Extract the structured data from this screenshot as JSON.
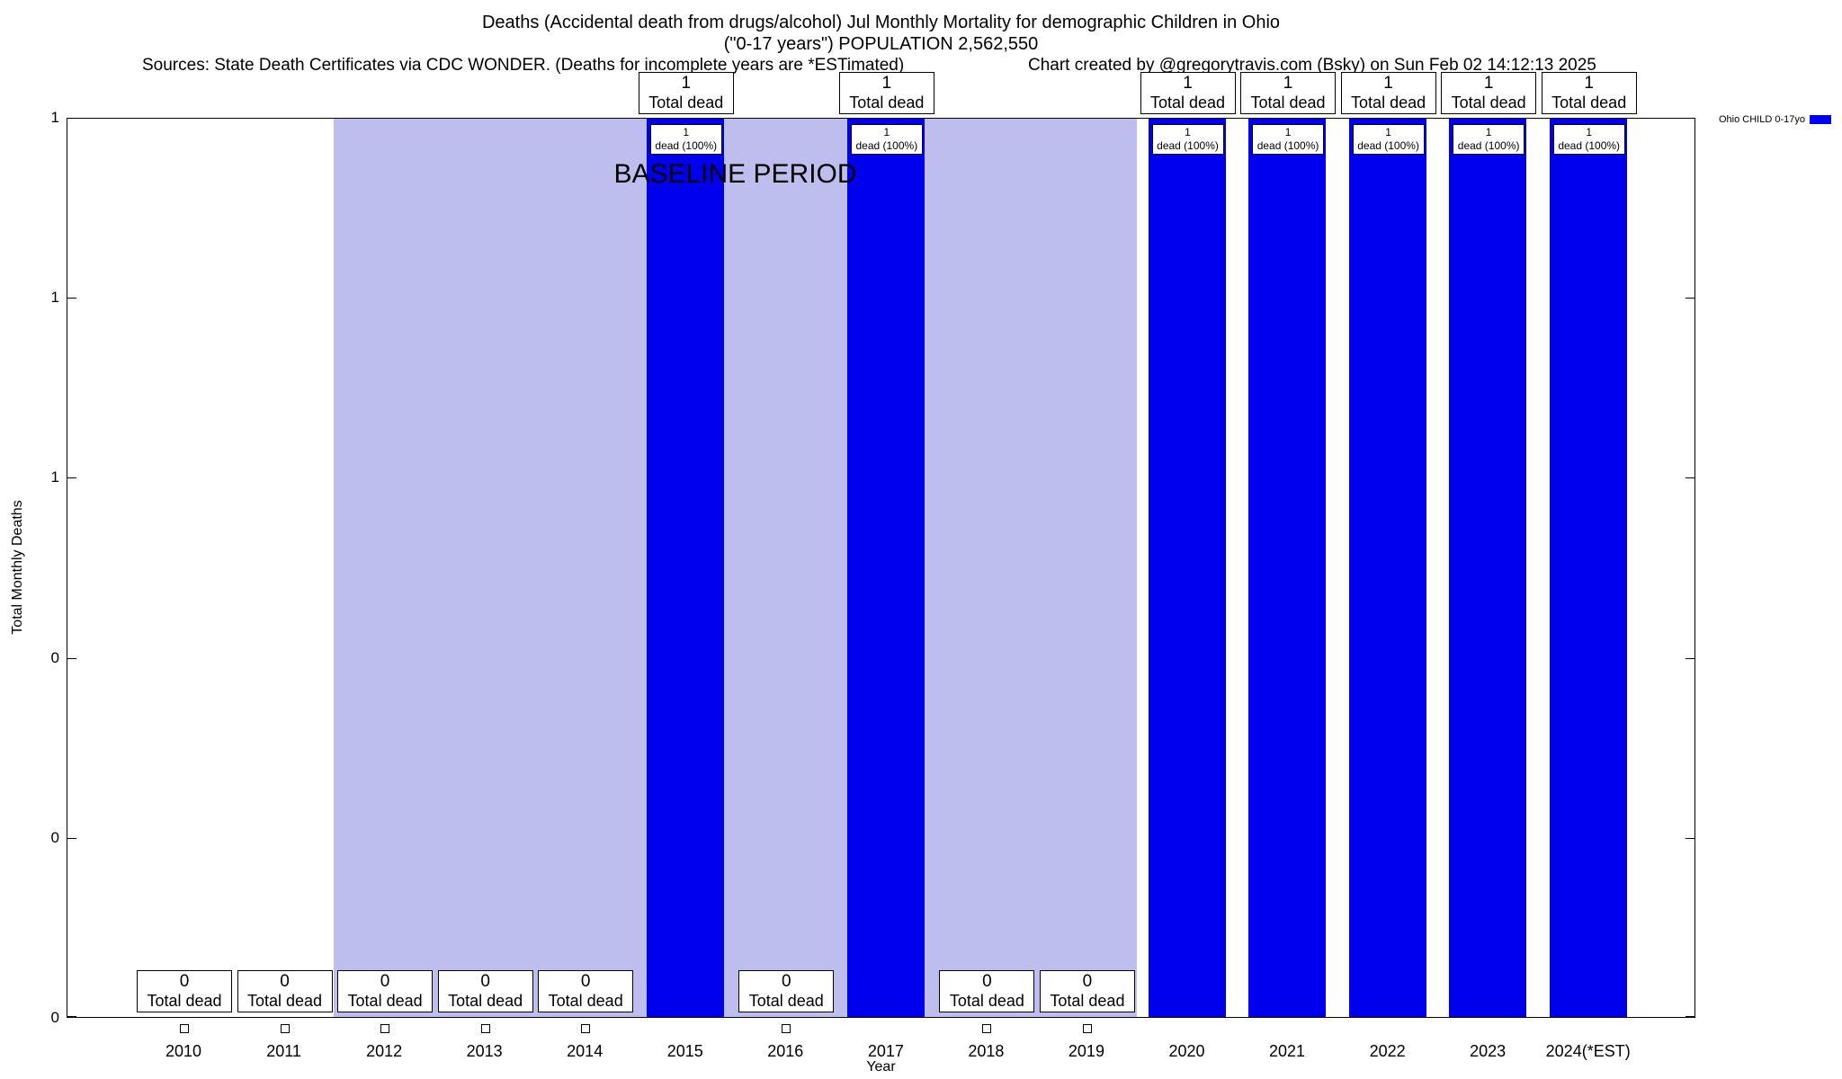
{
  "header": {
    "title_line1": "Deaths (Accidental death from drugs/alcohol) Jul Monthly Mortality for demographic Children in Ohio",
    "title_line2": "(\"0-17 years\") POPULATION 2,562,550",
    "sources": "Sources: State Death Certificates via CDC WONDER. (Deaths for incomplete years are *ESTimated)",
    "credit": "Chart created by @gregorytravis.com (Bsky) on Sun Feb 02 14:12:13 2025"
  },
  "chart_data": {
    "type": "bar",
    "title": "Deaths (Accidental death from drugs/alcohol) Jul Monthly Mortality for demographic Children in Ohio",
    "subtitle": "(\"0-17 years\") POPULATION 2,562,550",
    "xlabel": "Year",
    "ylabel": "Total Monthly Deaths",
    "ylim": [
      0,
      1
    ],
    "grid": false,
    "categories": [
      "2010",
      "2011",
      "2012",
      "2013",
      "2014",
      "2015",
      "2016",
      "2017",
      "2018",
      "2019",
      "2020",
      "2021",
      "2022",
      "2023",
      "2024(*EST)"
    ],
    "series": [
      {
        "name": "Ohio CHILD 0-17yo",
        "color": "#0000ee",
        "values": [
          0,
          0,
          0,
          0,
          0,
          1,
          0,
          1,
          0,
          0,
          1,
          1,
          1,
          1,
          1
        ]
      }
    ],
    "yticks": [
      {
        "value": 1,
        "label": "1"
      },
      {
        "value": 0.8,
        "label": "1"
      },
      {
        "value": 0.6,
        "label": "1"
      },
      {
        "value": 0.4,
        "label": "0"
      },
      {
        "value": 0.2,
        "label": "0"
      },
      {
        "value": 0,
        "label": "0"
      }
    ],
    "labels": {
      "total_dead": "Total dead",
      "dead_pct": "dead (100%)"
    },
    "baseline_band": {
      "label": "BASELINE PERIOD",
      "from_category": "2012",
      "to_category": "2019",
      "color": "#bdbdee"
    },
    "legend": {
      "position": "top-right",
      "entries": [
        {
          "label": "Ohio CHILD 0-17yo",
          "color": "#0000ee"
        }
      ]
    }
  }
}
